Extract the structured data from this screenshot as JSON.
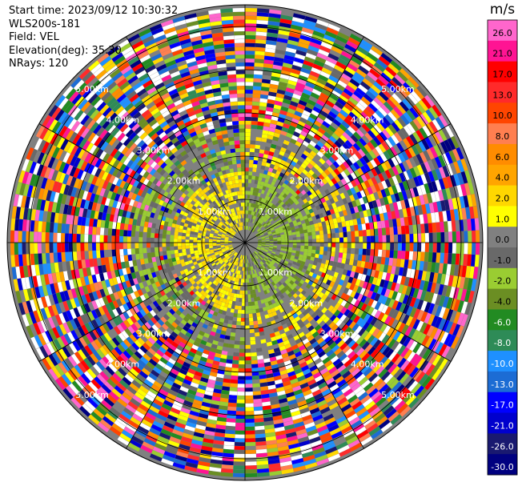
{
  "header": {
    "start_time": "Start time: 2023/09/12 10:30:32",
    "instrument": "WLS200s-181",
    "field": "Field: VEL",
    "elevation": "Elevation(deg): 35.30",
    "nrays": "NRays: 120"
  },
  "chart_data": {
    "type": "heatmap",
    "projection": "polar (PPI)",
    "field": "VEL",
    "unit": "m/s",
    "n_rays": 120,
    "range_rings": [
      {
        "label": "1.00km",
        "value_km": 1.0
      },
      {
        "label": "2.00km",
        "value_km": 2.0
      },
      {
        "label": "3.00km",
        "value_km": 3.0
      },
      {
        "label": "4.00km",
        "value_km": 4.0
      },
      {
        "label": "5.00km",
        "value_km": 5.0
      }
    ],
    "max_range_km": 5.5,
    "colorbar": {
      "title": "m/s",
      "ticks": [
        "26.0",
        "21.0",
        "17.0",
        "13.0",
        "10.0",
        "8.0",
        "6.0",
        "4.0",
        "2.0",
        "1.0",
        "0.0",
        "-1.0",
        "-2.0",
        "-4.0",
        "-6.0",
        "-8.0",
        "-10.0",
        "-13.0",
        "-17.0",
        "-21.0",
        "-26.0",
        "-30.0"
      ],
      "colors": [
        "#ff66cc",
        "#ff1493",
        "#ff0000",
        "#ff2a2a",
        "#ff4500",
        "#ff7f50",
        "#ff8c00",
        "#ffa500",
        "#ffd700",
        "#ffff00",
        "#808080",
        "#696969",
        "#9acd32",
        "#6b8e23",
        "#228b22",
        "#2e8b57",
        "#1e90ff",
        "#1c6cd4",
        "#0000ff",
        "#0000cd",
        "#191970",
        "#000080"
      ]
    },
    "pattern": {
      "inner_km": 0.3,
      "near_field": "alternating yellow (toward) / green (away) velocities within ~1.5 km, gray near-zero returns",
      "far_field": "noisy speckle of all colors beyond ~2.5 km"
    }
  }
}
